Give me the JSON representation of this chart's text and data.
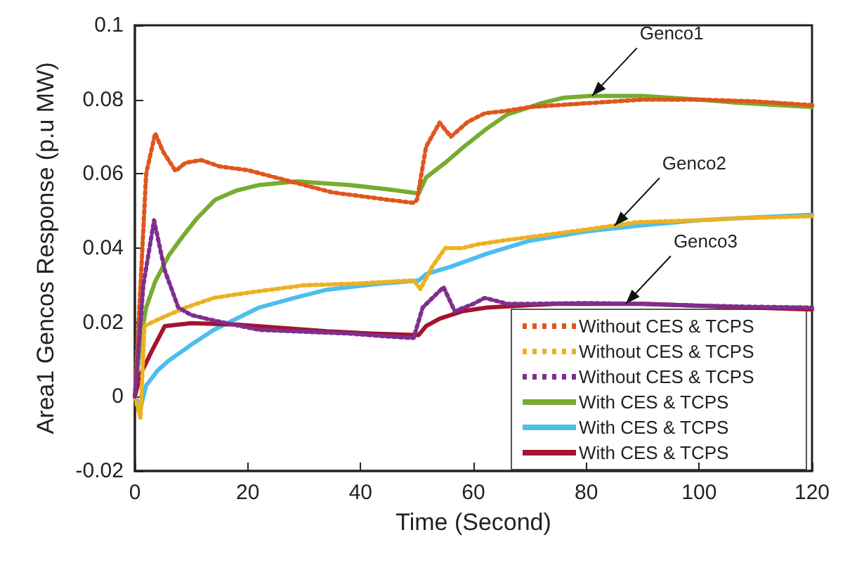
{
  "chart_data": {
    "type": "line",
    "xlabel": "Time (Second)",
    "ylabel": "Area1 Gencos Response (p.u MW)",
    "xlim": [
      0,
      120
    ],
    "xticks": [
      0,
      20,
      40,
      60,
      80,
      100,
      120
    ],
    "ylim": [
      -0.02,
      0.1
    ],
    "yticks": [
      -0.02,
      0,
      0.02,
      0.04,
      0.06,
      0.08,
      0.1
    ],
    "grid": false,
    "legend": "bottom right",
    "marker": "none",
    "annotations": [
      {
        "text": "Genco1",
        "x": 81,
        "y": 0.081
      },
      {
        "text": "Genco2",
        "x": 85,
        "y": 0.046
      },
      {
        "text": "Genco3",
        "x": 87,
        "y": 0.025
      }
    ],
    "series": [
      {
        "name": "Without CES & TCPS",
        "color": "#e0561d",
        "line_style": "dotted",
        "x": [
          0,
          1,
          2,
          3.6,
          5,
          7.2,
          9,
          11.8,
          15,
          20,
          25,
          30,
          35,
          40,
          45,
          49.4,
          50,
          51.6,
          54,
          56,
          59,
          62,
          66,
          70,
          75,
          80,
          85,
          90,
          100,
          110,
          120
        ],
        "values": [
          0,
          0.03,
          0.06,
          0.0709,
          0.066,
          0.0608,
          0.063,
          0.0637,
          0.062,
          0.061,
          0.059,
          0.057,
          0.055,
          0.054,
          0.053,
          0.0522,
          0.053,
          0.0673,
          0.0738,
          0.07,
          0.074,
          0.0763,
          0.077,
          0.078,
          0.0785,
          0.079,
          0.0795,
          0.08,
          0.08,
          0.0795,
          0.0785
        ]
      },
      {
        "name": "Without CES & TCPS",
        "color": "#edb120",
        "line_style": "dotted",
        "x": [
          0,
          1,
          1.7,
          3,
          5.3,
          9,
          14,
          20,
          25,
          30,
          40,
          49.4,
          50.6,
          52.7,
          55,
          58,
          60.7,
          65,
          70,
          80,
          89,
          100,
          106,
          120
        ],
        "values": [
          0,
          -0.0058,
          0.019,
          0.02,
          0.0216,
          0.024,
          0.0266,
          0.028,
          0.029,
          0.03,
          0.0305,
          0.0313,
          0.029,
          0.035,
          0.04,
          0.04,
          0.041,
          0.042,
          0.043,
          0.045,
          0.047,
          0.0475,
          0.048,
          0.0486
        ]
      },
      {
        "name": "Without CES & TCPS",
        "color": "#7e2f8e",
        "line_style": "dotted",
        "x": [
          0,
          1.5,
          3.4,
          5.3,
          7.7,
          10,
          14,
          22,
          30,
          38,
          45,
          49.4,
          51,
          54.7,
          56.7,
          60,
          62,
          66,
          70,
          80,
          90,
          100,
          110,
          120
        ],
        "values": [
          0,
          0.03,
          0.0475,
          0.034,
          0.024,
          0.022,
          0.0205,
          0.018,
          0.0175,
          0.017,
          0.0162,
          0.0158,
          0.024,
          0.0295,
          0.023,
          0.025,
          0.0266,
          0.025,
          0.025,
          0.0252,
          0.025,
          0.0245,
          0.0242,
          0.024
        ]
      },
      {
        "name": "With CES & TCPS",
        "color": "#77ac30",
        "line_style": "solid",
        "x": [
          0,
          1,
          2,
          3.6,
          6,
          8.4,
          11,
          14.2,
          18,
          22,
          28.7,
          38,
          45,
          50.3,
          51.6,
          55,
          58.3,
          62.3,
          66,
          72,
          76,
          80.7,
          90,
          100,
          106.5,
          120
        ],
        "values": [
          0,
          0.015,
          0.024,
          0.031,
          0.038,
          0.043,
          0.048,
          0.053,
          0.0555,
          0.057,
          0.058,
          0.057,
          0.0558,
          0.0547,
          0.059,
          0.063,
          0.0673,
          0.0721,
          0.076,
          0.079,
          0.0805,
          0.081,
          0.081,
          0.08,
          0.0792,
          0.078
        ]
      },
      {
        "name": "With CES & TCPS",
        "color": "#4dbeee",
        "line_style": "solid",
        "x": [
          0,
          1,
          2,
          4,
          6,
          10,
          14,
          22,
          28,
          34,
          42,
          50.3,
          51.6,
          56,
          62.4,
          70,
          80,
          89,
          100,
          106,
          120
        ],
        "values": [
          0,
          -0.003,
          0.003,
          0.007,
          0.0097,
          0.014,
          0.018,
          0.024,
          0.0265,
          0.0288,
          0.0302,
          0.0313,
          0.033,
          0.035,
          0.0385,
          0.042,
          0.0445,
          0.046,
          0.0475,
          0.048,
          0.049
        ]
      },
      {
        "name": "With CES & TCPS",
        "color": "#a2142f",
        "line_style": "solid",
        "x": [
          0,
          1,
          2.9,
          5.3,
          10,
          18,
          26,
          34,
          42,
          50.3,
          51.6,
          54,
          58,
          62.4,
          68,
          74.5,
          90,
          105,
          120
        ],
        "values": [
          0,
          0.006,
          0.012,
          0.019,
          0.0198,
          0.0194,
          0.0185,
          0.0176,
          0.017,
          0.0166,
          0.019,
          0.021,
          0.023,
          0.024,
          0.0245,
          0.025,
          0.025,
          0.0242,
          0.0235
        ]
      }
    ]
  }
}
